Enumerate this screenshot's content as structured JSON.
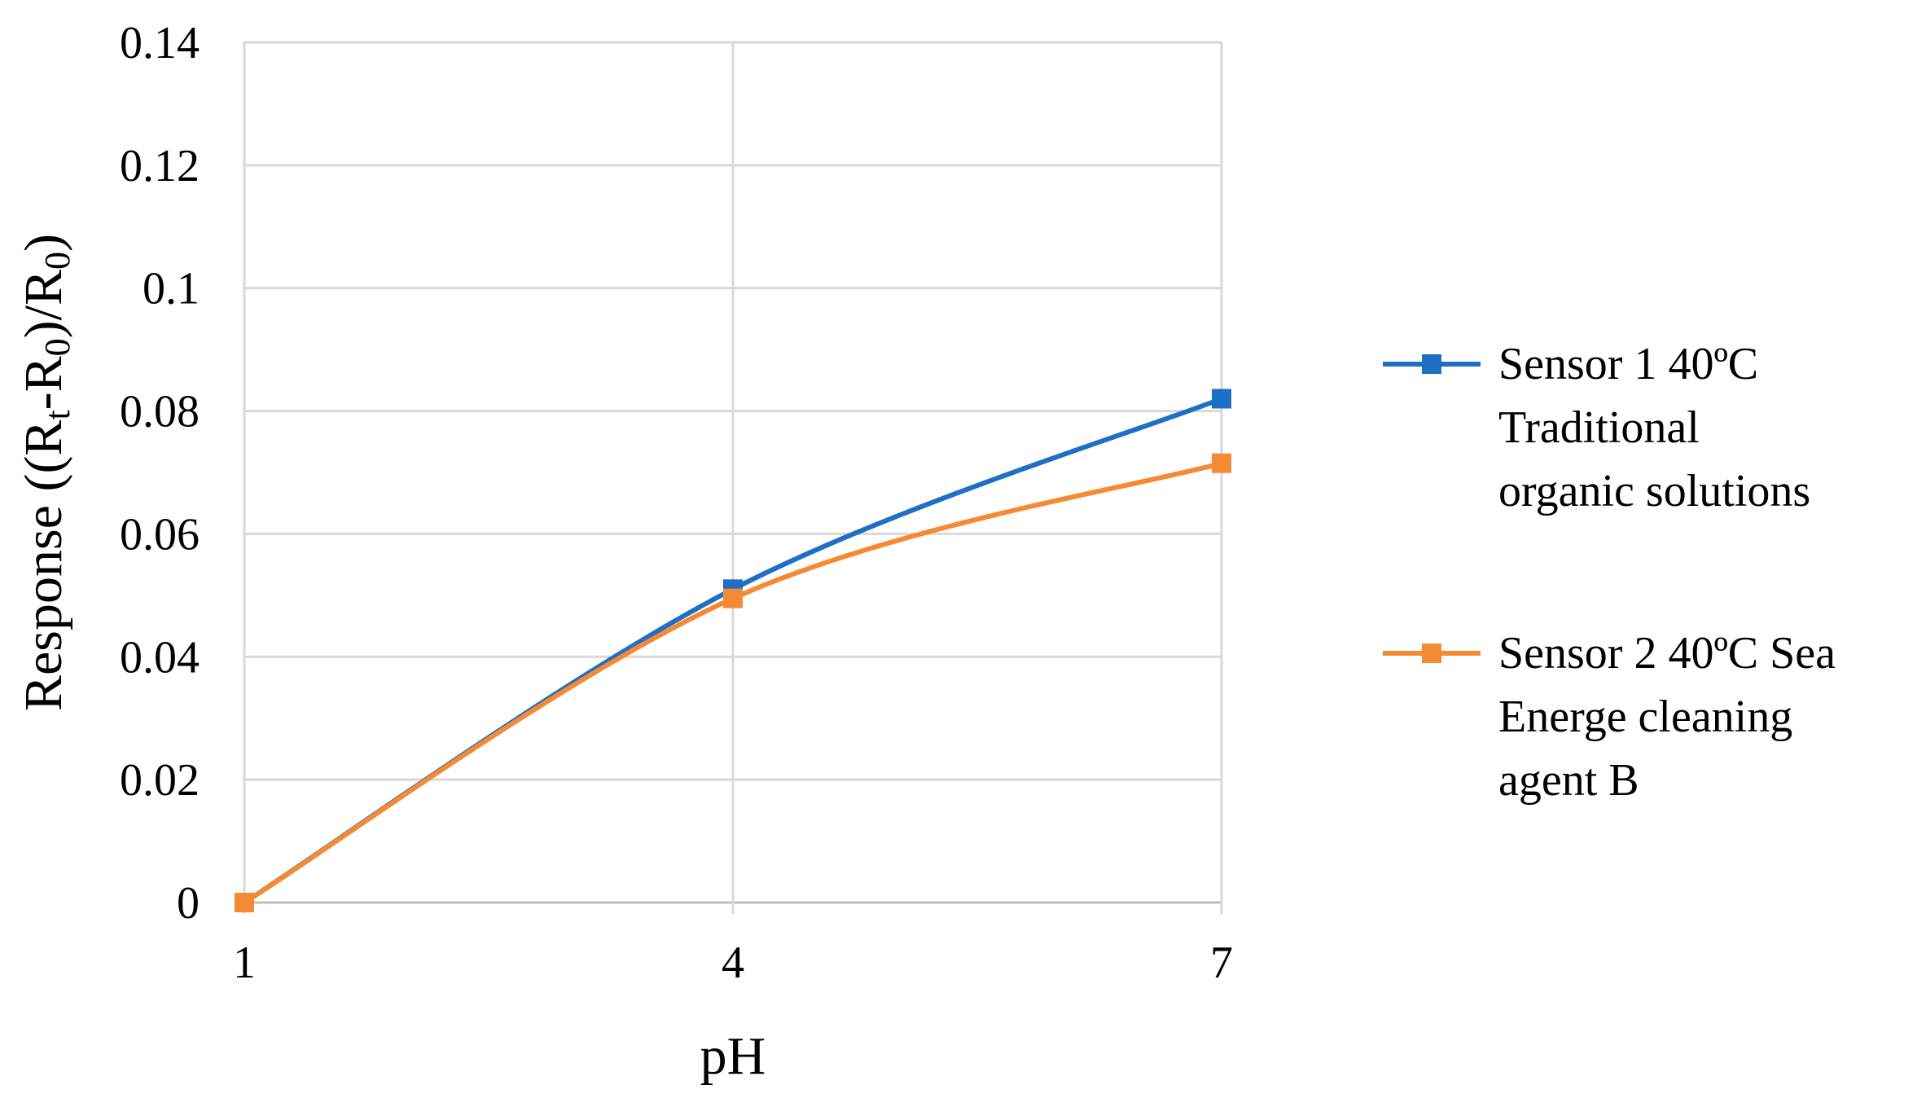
{
  "chart_data": {
    "type": "line",
    "title": "",
    "xlabel": "pH",
    "ylabel": {
      "parts": [
        {
          "text": "Response ((R",
          "sub": false
        },
        {
          "text": "t",
          "sub": true
        },
        {
          "text": "-R",
          "sub": false
        },
        {
          "text": "0",
          "sub": true
        },
        {
          "text": ")/R",
          "sub": false
        },
        {
          "text": "0",
          "sub": true
        },
        {
          "text": ")",
          "sub": false
        }
      ]
    },
    "x": [
      1,
      4,
      7
    ],
    "x_ticks": [
      "1",
      "4",
      "7"
    ],
    "y_ticks": [
      "0",
      "0.02",
      "0.04",
      "0.06",
      "0.08",
      "0.1",
      "0.12",
      "0.14"
    ],
    "ylim": [
      0,
      0.14
    ],
    "grid": true,
    "smooth": true,
    "legend_position": "right",
    "series": [
      {
        "name": "Sensor 1 40ºC Traditional organic solutions",
        "legend_lines": [
          "Sensor 1 40ºC",
          "Traditional",
          "organic solutions"
        ],
        "values": [
          0,
          0.051,
          0.082
        ],
        "color": "#1f6fc5",
        "marker": "square"
      },
      {
        "name": "Sensor 2 40ºC Sea Energe cleaning agent B",
        "legend_lines": [
          "Sensor 2 40ºC Sea",
          "Energe cleaning",
          "agent B"
        ],
        "values": [
          0,
          0.0495,
          0.0715
        ],
        "color": "#f58a35",
        "marker": "square"
      }
    ],
    "colors": {
      "grid": "#d9d9d9",
      "axis": "#bfbfbf"
    }
  }
}
